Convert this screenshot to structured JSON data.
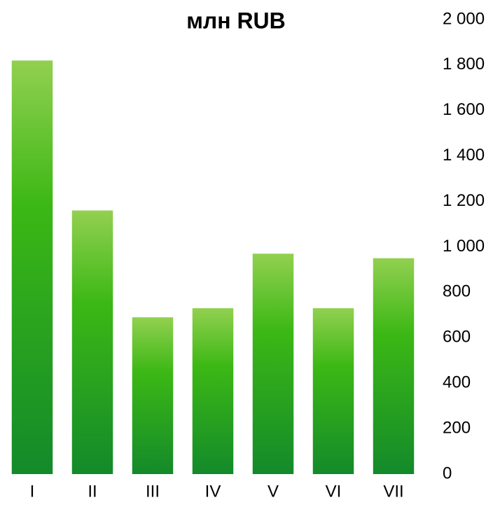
{
  "chart_data": {
    "type": "bar",
    "title": "млн RUB",
    "categories": [
      "I",
      "II",
      "III",
      "IV",
      "V",
      "VI",
      "VII"
    ],
    "values": [
      1820,
      1160,
      690,
      730,
      970,
      730,
      950
    ],
    "ylim": [
      0,
      2000
    ],
    "yticks": [
      0,
      200,
      400,
      600,
      800,
      {
        "value": 1000,
        "label": "1 000"
      },
      {
        "value": 1200,
        "label": "1 200"
      },
      {
        "value": 1400,
        "label": "1 400"
      },
      {
        "value": 1600,
        "label": "1 600"
      },
      {
        "value": 1800,
        "label": "1 800"
      },
      {
        "value": 2000,
        "label": "2 000"
      }
    ],
    "axis_position": "right"
  }
}
